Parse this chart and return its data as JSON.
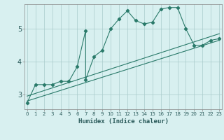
{
  "xlabel": "Humidex (Indice chaleur)",
  "bg_color": "#d8f0f0",
  "line_color": "#2a7a6a",
  "grid_color": "#aacccc",
  "xticks": [
    0,
    1,
    2,
    3,
    4,
    5,
    6,
    7,
    8,
    9,
    10,
    11,
    12,
    13,
    14,
    15,
    16,
    17,
    18,
    19,
    20,
    21,
    22,
    23
  ],
  "yticks": [
    3,
    4,
    5
  ],
  "ylim": [
    2.55,
    5.75
  ],
  "xlim": [
    -0.3,
    23.3
  ],
  "scatter_x": [
    0,
    1,
    2,
    3,
    4,
    5,
    6,
    7,
    7,
    8,
    9,
    10,
    11,
    12,
    13,
    14,
    15,
    16,
    17,
    18,
    19,
    20,
    21,
    22,
    23
  ],
  "scatter_y": [
    2.75,
    3.3,
    3.3,
    3.3,
    3.4,
    3.4,
    3.85,
    4.95,
    3.45,
    4.15,
    4.35,
    5.0,
    5.3,
    5.55,
    5.25,
    5.15,
    5.2,
    5.6,
    5.65,
    5.65,
    5.0,
    4.5,
    4.5,
    4.65,
    4.7
  ],
  "line1_x": [
    0,
    23
  ],
  "line1_y": [
    2.8,
    4.65
  ],
  "line2_x": [
    0,
    23
  ],
  "line2_y": [
    2.95,
    4.85
  ]
}
